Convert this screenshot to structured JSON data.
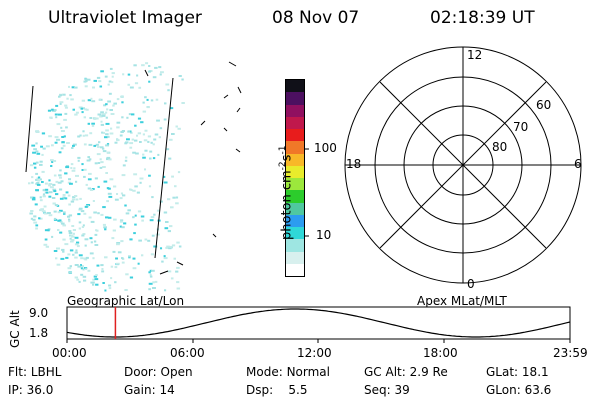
{
  "header": {
    "title": "Ultraviolet Imager",
    "date": "08 Nov 07",
    "time": "02:18:39 UT"
  },
  "colorbar": {
    "unit": "photon cm",
    "unit_exp": "-2",
    "unit_s": "s",
    "unit_s_exp": "-1",
    "tick_100": "100",
    "tick_10": "10",
    "colors": [
      "#ffffff",
      "#d8f0ee",
      "#9ee6e2",
      "#2fd8d8",
      "#2c9cf0",
      "#4fc8a0",
      "#2ccc2c",
      "#9ce83c",
      "#e8ec2c",
      "#f8b828",
      "#f07828",
      "#e81c1c",
      "#c0184c",
      "#901060",
      "#4c1060",
      "#101018"
    ]
  },
  "polar": {
    "labels": {
      "top": "12",
      "bottom": "0",
      "left": "18",
      "right": "6",
      "lat60": "60",
      "lat70": "70",
      "lat80": "80"
    }
  },
  "altitude_plot": {
    "ylabel": "GC Alt",
    "y_high": "9.0",
    "y_low": "1.8",
    "left_caption": "Geographic Lat/Lon",
    "right_caption": "Apex MLat/MLT",
    "x_ticks": [
      "00:00",
      "06:00",
      "12:00",
      "18:00",
      "23:59"
    ],
    "cursor_hours": 2.31
  },
  "info": {
    "flt_label": "Flt:",
    "flt_value": "LBHL",
    "door_label": "Door:",
    "door_value": "Open",
    "mode_label": "Mode:",
    "mode_value": "Normal",
    "gcalt_label": "GC Alt:",
    "gcalt_value": "2.9 Re",
    "glat_label": "GLat:",
    "glat_value": "18.1",
    "ip_label": "IP:",
    "ip_value": "36.0",
    "gain_label": "Gain:",
    "gain_value": "14",
    "dsp_label": "Dsp:",
    "dsp_value": "5.5",
    "seq_label": "Seq:",
    "seq_value": "39",
    "glon_label": "GLon:",
    "glon_value": "63.6"
  }
}
